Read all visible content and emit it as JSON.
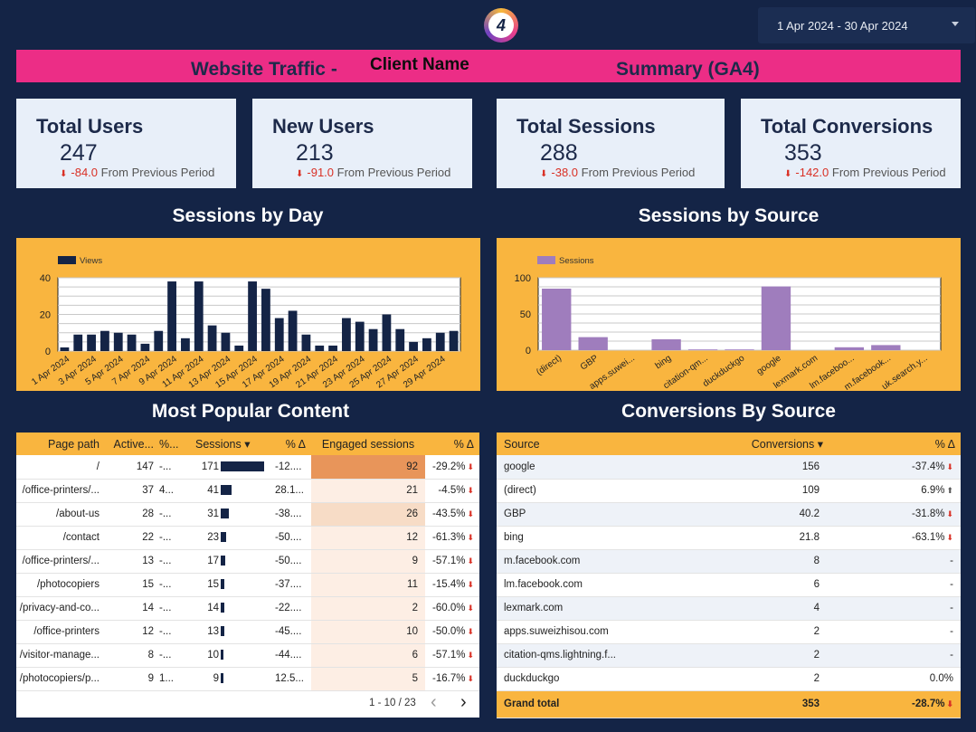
{
  "header": {
    "logo_text": "4",
    "date_range": "1 Apr 2024 - 30 Apr 2024",
    "title_left": "Website Traffic -",
    "client_name": "Client Name",
    "title_right": "Summary (GA4)"
  },
  "kpis": [
    {
      "label": "Total Users",
      "value": "247",
      "delta": "-84.0",
      "suffix": "From Previous Period"
    },
    {
      "label": "New Users",
      "value": "213",
      "delta": "-91.0",
      "suffix": "From Previous Period"
    },
    {
      "label": "Total Sessions",
      "value": "288",
      "delta": "-38.0",
      "suffix": "From Previous Period"
    },
    {
      "label": "Total Conversions",
      "value": "353",
      "delta": "-142.0",
      "suffix": "From Previous Period"
    }
  ],
  "sections": {
    "sessions_by_day": "Sessions by Day",
    "sessions_by_source": "Sessions by Source",
    "popular_content": "Most Popular Content",
    "conversions_by_source": "Conversions By Source"
  },
  "chart_data": [
    {
      "type": "bar",
      "title": "Sessions by Day",
      "legend": "Views",
      "color": "#142446",
      "ylim": [
        0,
        40
      ],
      "yticks": [
        0,
        20,
        40
      ],
      "x_tick_labels": [
        "1 Apr 2024",
        "3 Apr 2024",
        "5 Apr 2024",
        "7 Apr 2024",
        "9 Apr 2024",
        "11 Apr 2024",
        "13 Apr 2024",
        "15 Apr 2024",
        "17 Apr 2024",
        "19 Apr 2024",
        "21 Apr 2024",
        "23 Apr 2024",
        "25 Apr 2024",
        "27 Apr 2024",
        "29 Apr 2024"
      ],
      "values": [
        2,
        9,
        9,
        11,
        10,
        9,
        4,
        11,
        38,
        7,
        38,
        14,
        10,
        3,
        38,
        34,
        18,
        22,
        9,
        3,
        3,
        18,
        16,
        12,
        20,
        12,
        5,
        7,
        10,
        11
      ]
    },
    {
      "type": "bar",
      "title": "Sessions by Source",
      "legend": "Sessions",
      "color": "#9f7dbd",
      "ylim": [
        0,
        100
      ],
      "yticks": [
        0,
        50,
        100
      ],
      "categories": [
        "(direct)",
        "GBP",
        "apps.suwei...",
        "bing",
        "citation-qm...",
        "duckduckgo",
        "google",
        "lexmark.com",
        "lm.faceboo...",
        "m.facebook...",
        "uk.search.y..."
      ],
      "values": [
        85,
        18,
        0,
        15,
        1,
        1,
        88,
        0,
        4,
        7,
        0
      ]
    }
  ],
  "content_table": {
    "headers": [
      "Page path",
      "Active...",
      "%...",
      "Sessions",
      "% Δ",
      "Engaged sessions",
      "% Δ"
    ],
    "sort_arrow": "▾",
    "rows": [
      {
        "path": "/",
        "active": "147",
        "pct": "-...",
        "sessions": "171",
        "sess_delta": "-12....",
        "engaged": "92",
        "eng_delta": "-29.2%"
      },
      {
        "path": "/office-printers/...",
        "active": "37",
        "pct": "4...",
        "sessions": "41",
        "sess_delta": "28.1...",
        "engaged": "21",
        "eng_delta": "-4.5%"
      },
      {
        "path": "/about-us",
        "active": "28",
        "pct": "-...",
        "sessions": "31",
        "sess_delta": "-38....",
        "engaged": "26",
        "eng_delta": "-43.5%"
      },
      {
        "path": "/contact",
        "active": "22",
        "pct": "-...",
        "sessions": "23",
        "sess_delta": "-50....",
        "engaged": "12",
        "eng_delta": "-61.3%"
      },
      {
        "path": "/office-printers/...",
        "active": "13",
        "pct": "-...",
        "sessions": "17",
        "sess_delta": "-50....",
        "engaged": "9",
        "eng_delta": "-57.1%"
      },
      {
        "path": "/photocopiers",
        "active": "15",
        "pct": "-...",
        "sessions": "15",
        "sess_delta": "-37....",
        "engaged": "11",
        "eng_delta": "-15.4%"
      },
      {
        "path": "/privacy-and-co...",
        "active": "14",
        "pct": "-...",
        "sessions": "14",
        "sess_delta": "-22....",
        "engaged": "2",
        "eng_delta": "-60.0%"
      },
      {
        "path": "/office-printers",
        "active": "12",
        "pct": "-...",
        "sessions": "13",
        "sess_delta": "-45....",
        "engaged": "10",
        "eng_delta": "-50.0%"
      },
      {
        "path": "/visitor-manage...",
        "active": "8",
        "pct": "-...",
        "sessions": "10",
        "sess_delta": "-44....",
        "engaged": "6",
        "eng_delta": "-57.1%"
      },
      {
        "path": "/photocopiers/p...",
        "active": "9",
        "pct": "1...",
        "sessions": "9",
        "sess_delta": "12.5...",
        "engaged": "5",
        "eng_delta": "-16.7%"
      }
    ],
    "pagination": "1 - 10 / 23",
    "prev_icon": "‹",
    "next_icon": "›"
  },
  "conversions_table": {
    "headers": [
      "Source",
      "Conversions",
      "% Δ"
    ],
    "sort_arrow": "▾",
    "rows": [
      {
        "source": "google",
        "conversions": "156",
        "delta": "-37.4%",
        "dir": "down"
      },
      {
        "source": "(direct)",
        "conversions": "109",
        "delta": "6.9%",
        "dir": "up"
      },
      {
        "source": "GBP",
        "conversions": "40.2",
        "delta": "-31.8%",
        "dir": "down"
      },
      {
        "source": "bing",
        "conversions": "21.8",
        "delta": "-63.1%",
        "dir": "down"
      },
      {
        "source": "m.facebook.com",
        "conversions": "8",
        "delta": "-",
        "dir": "none"
      },
      {
        "source": "lm.facebook.com",
        "conversions": "6",
        "delta": "-",
        "dir": "none"
      },
      {
        "source": "lexmark.com",
        "conversions": "4",
        "delta": "-",
        "dir": "none"
      },
      {
        "source": "apps.suweizhisou.com",
        "conversions": "2",
        "delta": "-",
        "dir": "none"
      },
      {
        "source": "citation-qms.lightning.f...",
        "conversions": "2",
        "delta": "-",
        "dir": "none"
      },
      {
        "source": "duckduckgo",
        "conversions": "2",
        "delta": "0.0%",
        "dir": "none"
      }
    ],
    "total": {
      "label": "Grand total",
      "conversions": "353",
      "delta": "-28.7%"
    }
  }
}
